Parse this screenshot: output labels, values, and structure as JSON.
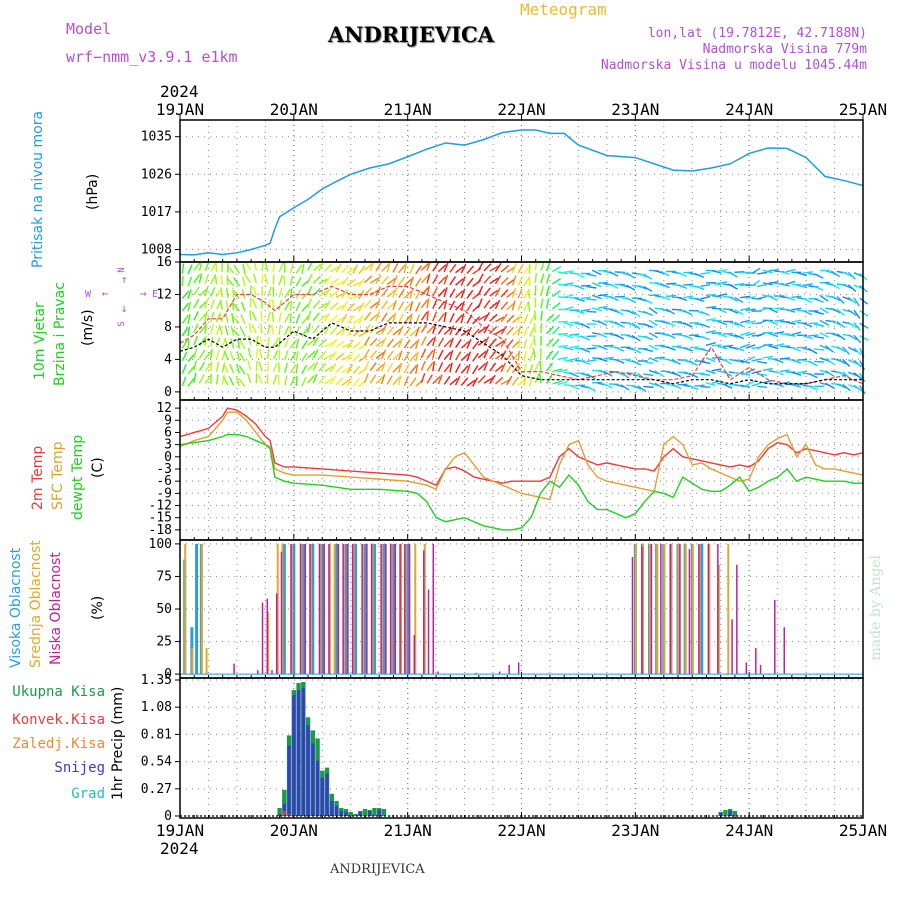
{
  "header": {
    "model_label": "Model",
    "model_name": "wrf−nmm_v3.9.1 e1km",
    "station": "ANDRIJEVICA",
    "meteogram_label": "Meteogram",
    "lonlat": "lon,lat (19.7812E, 42.7188N)",
    "altitude": "Nadmorska Visina 779m",
    "model_altitude": "Nadmorska Visina u modelu 1045.44m"
  },
  "footer": {
    "station": "ANDRIJEVICA",
    "made_by": "made by Angel"
  },
  "colors": {
    "pressure": "#1e9ee0",
    "temp2m": "#f03a3a",
    "sfc": "#e0a030",
    "dewpt": "#20d020",
    "high_cloud": "#2a9ee0",
    "mid_cloud": "#e0a830",
    "low_cloud": "#c0209a",
    "precip_total": "#1a9a4a",
    "conv": "#f03a3a",
    "frozen": "#f08830",
    "snow": "#3a3ad0",
    "hail": "#20c0c0",
    "wind_speed": "#000000",
    "wind_gust": "#f03a3a",
    "wind_legend": "#b34fd6"
  },
  "chart_data": [
    {
      "type": "line",
      "panel": "pressure",
      "ylabel_lines": [
        "Pritisak na nivou mora",
        "(hPa)"
      ],
      "yticks": [
        1008,
        1017,
        1026,
        1035
      ],
      "ylim": [
        1005,
        1039
      ],
      "xlim": [
        0,
        144
      ],
      "x_major_ticks": [
        0,
        24,
        48,
        72,
        96,
        120,
        144
      ],
      "x_tick_labels_top": [
        "19JAN",
        "20JAN",
        "21JAN",
        "22JAN",
        "23JAN",
        "24JAN",
        "25JAN"
      ],
      "year_label": "2024",
      "grid": true,
      "x": [
        0,
        3,
        6,
        9,
        12,
        15,
        18,
        19,
        20,
        21,
        24,
        27,
        30,
        33,
        36,
        40,
        44,
        48,
        52,
        56,
        60,
        64,
        68,
        72,
        75,
        78,
        81,
        84,
        90,
        96,
        100,
        104,
        108,
        112,
        116,
        120,
        124,
        128,
        132,
        136,
        140,
        144
      ],
      "series": [
        {
          "values": [
            1006.8,
            1006.7,
            1007.2,
            1006.8,
            1007.2,
            1008,
            1009,
            1009.5,
            1013,
            1015.8,
            1018,
            1020,
            1022.5,
            1024.3,
            1026,
            1027.5,
            1028.5,
            1030.2,
            1032,
            1033.5,
            1033,
            1034.3,
            1036,
            1036.6,
            1036.6,
            1035.8,
            1035.8,
            1033,
            1030.5,
            1030,
            1028.5,
            1027,
            1026.8,
            1027.5,
            1028.5,
            1031,
            1032.3,
            1032.2,
            1030,
            1025.5,
            1024.5,
            1023.3
          ]
        }
      ]
    },
    {
      "type": "line",
      "panel": "wind",
      "ylabel_lines": [
        "10m Vjetar",
        "Brzina i Pravac",
        "(m/s)"
      ],
      "direction_legend": [
        "N",
        "↑",
        "W",
        "←",
        "→",
        "E",
        "↓",
        "S"
      ],
      "yticks": [
        0,
        4,
        8,
        12,
        16
      ],
      "ylim": [
        -1,
        16
      ],
      "xlim": [
        0,
        144
      ],
      "grid": true,
      "x": [
        0,
        3,
        6,
        9,
        12,
        15,
        18,
        20,
        24,
        28,
        32,
        36,
        40,
        44,
        48,
        52,
        56,
        60,
        64,
        68,
        72,
        76,
        80,
        84,
        88,
        92,
        96,
        100,
        104,
        108,
        112,
        116,
        120,
        124,
        128,
        132,
        136,
        140,
        144
      ],
      "series": [
        {
          "name": "speed",
          "values": [
            5,
            5.5,
            6.5,
            5.5,
            6.5,
            6.5,
            5.5,
            5.5,
            7.5,
            6.5,
            8.5,
            7.5,
            7.5,
            8.5,
            8.5,
            8.5,
            8,
            7.5,
            6,
            4.5,
            2,
            1.5,
            1.5,
            1.5,
            1.5,
            1.5,
            1.5,
            1.5,
            1,
            1.5,
            1.5,
            1,
            1.5,
            1,
            1,
            1,
            1.5,
            1.5,
            1.5
          ]
        },
        {
          "name": "gust",
          "values": [
            6,
            7,
            9,
            9,
            12,
            12,
            11,
            10,
            12,
            12,
            13,
            12,
            12,
            13,
            13,
            12,
            11,
            10,
            8,
            6.5,
            2.5,
            2.5,
            2,
            1.5,
            2,
            2.5,
            2,
            1.5,
            1.5,
            2,
            5.5,
            1.5,
            3,
            1.5,
            1,
            1,
            1.5,
            2,
            1
          ]
        }
      ],
      "barbs": {
        "speed": [
          6,
          7,
          8,
          7,
          8,
          8,
          7,
          7,
          9,
          9,
          10,
          10,
          10,
          11,
          12,
          12,
          12,
          11,
          9,
          7,
          3,
          2,
          2,
          2,
          2,
          2,
          2,
          2,
          2,
          2,
          2,
          2,
          2,
          2,
          2,
          2,
          2,
          2,
          2
        ],
        "direction_deg": [
          200,
          210,
          190,
          150,
          170,
          190,
          200,
          220,
          230,
          225,
          220,
          215,
          210,
          205,
          210,
          215,
          220,
          225,
          200,
          180,
          270,
          280,
          280,
          285,
          290,
          285,
          280,
          280,
          270,
          290,
          250,
          280,
          270,
          280,
          290,
          300,
          320,
          330,
          335
        ]
      }
    },
    {
      "type": "line",
      "panel": "temperature",
      "ylabel_lines": [
        "2m Temp",
        "SFC Temp",
        "dewpt Temp",
        "(C)"
      ],
      "yticks": [
        12,
        9,
        6,
        3,
        0,
        -3,
        -6,
        -9,
        -12,
        -15,
        -18
      ],
      "ylim": [
        -20.5,
        14
      ],
      "xlim": [
        0,
        144
      ],
      "grid": true,
      "x": [
        0,
        3,
        6,
        9,
        10,
        12,
        14,
        16,
        18,
        19,
        20,
        22,
        24,
        30,
        36,
        42,
        48,
        50,
        52,
        54,
        56,
        58,
        60,
        62,
        64,
        66,
        68,
        70,
        72,
        74,
        76,
        78,
        80,
        82,
        84,
        86,
        88,
        90,
        92,
        94,
        96,
        98,
        100,
        102,
        104,
        106,
        108,
        110,
        112,
        114,
        116,
        118,
        120,
        122,
        124,
        126,
        128,
        130,
        132,
        134,
        136,
        138,
        140,
        142,
        144
      ],
      "series": [
        {
          "name": "2m Temp",
          "values": [
            5,
            6,
            7,
            10,
            12,
            11.5,
            10,
            8,
            5,
            4,
            -1.5,
            -2.5,
            -2.5,
            -3,
            -3.5,
            -4,
            -4.5,
            -5,
            -6,
            -7,
            -3,
            -2.5,
            -3.5,
            -5,
            -5.5,
            -6,
            -6.5,
            -6,
            -6,
            -6,
            -6,
            -5,
            0,
            2,
            0,
            -1,
            -2,
            -1.5,
            -2,
            -2.5,
            -3,
            -3,
            -3.5,
            0,
            2,
            0,
            -0.5,
            -1,
            -1.5,
            -2,
            -2.5,
            -2,
            -2.5,
            -1,
            2,
            3.5,
            3,
            1,
            2,
            1.5,
            1,
            0.5,
            1,
            0.5,
            1
          ]
        },
        {
          "name": "SFC Temp",
          "values": [
            2.5,
            4,
            5,
            9,
            11,
            11,
            9,
            6,
            3,
            2.5,
            -3,
            -4,
            -4.5,
            -4.5,
            -5,
            -5.5,
            -6,
            -6.5,
            -7,
            -8,
            -3,
            0,
            1,
            -2,
            -5,
            -6,
            -7,
            -8,
            -9,
            -9.5,
            -10,
            -10.5,
            -2,
            3,
            4,
            -2,
            -5,
            -6,
            -6.5,
            -7,
            -7.5,
            -8,
            -8.5,
            3,
            5,
            3,
            -2,
            -1.5,
            -3,
            -4,
            -5,
            -6,
            -5.5,
            0,
            3,
            4.5,
            5.5,
            0,
            3,
            -2,
            -3,
            -3,
            -3.5,
            -4,
            -4.5
          ]
        },
        {
          "name": "dewpt Temp",
          "values": [
            3,
            3.5,
            4,
            5,
            5.5,
            5.5,
            5,
            4,
            3,
            2,
            -5,
            -6,
            -6.5,
            -7,
            -8,
            -8,
            -8.5,
            -9,
            -11,
            -15,
            -16,
            -15.5,
            -15,
            -16,
            -17,
            -17.5,
            -18,
            -18,
            -17.5,
            -15,
            -9,
            -6,
            -7.5,
            -4.5,
            -7,
            -11,
            -13,
            -13,
            -14,
            -15,
            -14,
            -11,
            -8.5,
            -9,
            -10,
            -5,
            -6.5,
            -8,
            -8.5,
            -8.5,
            -7,
            -5,
            -8.5,
            -7.5,
            -6,
            -5,
            -3,
            -6,
            -5,
            -5.5,
            -6,
            -6,
            -6,
            -6.5,
            -6.5
          ]
        }
      ]
    },
    {
      "type": "bar",
      "panel": "clouds",
      "ylabel_lines": [
        "Visoka Oblacnost",
        "Srednja Oblacnost",
        "Niska Oblacnost",
        "(%)"
      ],
      "yticks": [
        0,
        25,
        50,
        75,
        100
      ],
      "ylim": [
        -3,
        103
      ],
      "xlim": [
        0,
        144
      ],
      "grid": true,
      "series": [
        {
          "name": "Visoka Oblacnost",
          "x": [
            1,
            2.5,
            3.5,
            4.5,
            22,
            24,
            26,
            28,
            30,
            33,
            35,
            37,
            39,
            41,
            43,
            45,
            48,
            96,
            97.5,
            99,
            100.5,
            102,
            103.5,
            105,
            106.5,
            108,
            110
          ],
          "values": [
            88,
            36,
            100,
            100,
            100,
            100,
            100,
            100,
            100,
            100,
            100,
            100,
            100,
            100,
            100,
            100,
            100,
            100,
            100,
            100,
            100,
            100,
            100,
            100,
            100,
            100,
            100
          ]
        },
        {
          "name": "Srednja Oblacnost",
          "x": [
            0.5,
            2,
            4,
            5,
            18,
            20,
            21,
            23,
            25,
            27,
            29,
            31,
            32,
            34,
            36,
            38,
            40,
            42,
            44,
            46,
            47,
            49,
            51,
            95.5,
            97,
            98.5,
            100,
            101.5,
            103,
            104.5,
            106,
            107.5,
            109,
            111,
            113,
            115
          ],
          "values": [
            100,
            20,
            100,
            20,
            48,
            100,
            100,
            100,
            100,
            100,
            100,
            100,
            100,
            100,
            100,
            100,
            100,
            100,
            100,
            100,
            100,
            100,
            100,
            100,
            100,
            100,
            100,
            100,
            100,
            100,
            100,
            100,
            100,
            100,
            84,
            100
          ]
        },
        {
          "name": "Niska Oblacnost",
          "x": [
            12,
            17,
            18,
            19,
            20,
            21,
            22,
            24,
            26,
            27,
            28,
            30,
            31,
            32,
            34,
            35,
            36,
            37,
            39,
            40,
            41,
            43,
            44,
            45,
            46,
            47,
            48,
            49,
            50,
            52,
            53,
            54,
            55,
            63,
            68,
            70,
            72,
            96,
            98,
            100,
            102,
            104,
            106,
            108,
            110,
            112,
            114,
            117,
            118,
            120,
            122,
            123,
            126,
            128
          ],
          "values": [
            8,
            3,
            55,
            58,
            3,
            62,
            94,
            100,
            100,
            100,
            100,
            100,
            100,
            100,
            100,
            100,
            100,
            100,
            100,
            100,
            100,
            100,
            100,
            100,
            100,
            100,
            100,
            100,
            30,
            95,
            65,
            100,
            2,
            1,
            2,
            7,
            9,
            90,
            98,
            100,
            100,
            100,
            100,
            96,
            100,
            100,
            100,
            42,
            84,
            9,
            20,
            7,
            57,
            36
          ]
        }
      ]
    },
    {
      "type": "bar",
      "panel": "precipitation",
      "ylabel_lines": [
        "1hr Precip (mm)"
      ],
      "legend": [
        "Ukupna Kisa",
        "Konvek.Kisa",
        "Zaledj.Kisa",
        "Snijeg",
        "Grad"
      ],
      "yticks": [
        0,
        0.27,
        0.54,
        0.81,
        1.08,
        1.35
      ],
      "ylim": [
        -0.02,
        1.37
      ],
      "xlim": [
        0,
        144
      ],
      "x_major_ticks": [
        0,
        24,
        48,
        72,
        96,
        120,
        144
      ],
      "x_tick_labels_bottom": [
        "19JAN",
        "20JAN",
        "21JAN",
        "22JAN",
        "23JAN",
        "24JAN",
        "25JAN"
      ],
      "year_label": "2024",
      "grid": true,
      "series": [
        {
          "name": "Ukupna Kisa",
          "x": [
            21,
            22,
            23,
            24,
            25,
            26,
            27,
            28,
            29,
            30,
            31,
            32,
            33,
            34,
            35,
            36,
            37,
            38,
            39,
            40,
            41,
            42,
            43,
            114,
            115,
            116,
            117
          ],
          "values": [
            0.08,
            0.26,
            0.8,
            1.25,
            1.32,
            1.33,
            0.98,
            0.85,
            0.77,
            0.45,
            0.48,
            0.22,
            0.15,
            0.08,
            0.07,
            0.04,
            0.02,
            0.05,
            0.07,
            0.06,
            0.08,
            0.08,
            0.07,
            0.04,
            0.06,
            0.07,
            0.05
          ]
        },
        {
          "name": "Snijeg",
          "x": [
            21,
            22,
            23,
            24,
            25,
            26,
            27,
            28,
            29,
            30,
            31,
            32,
            33,
            34,
            35,
            38,
            40,
            42,
            114,
            116
          ],
          "values": [
            0.02,
            0.12,
            0.7,
            1.2,
            1.25,
            1.27,
            0.9,
            0.72,
            0.55,
            0.38,
            0.42,
            0.15,
            0.1,
            0.05,
            0.04,
            0.04,
            0.05,
            0.06,
            0.03,
            0.05
          ]
        },
        {
          "name": "Konvek.Kisa",
          "x": [
            22,
            23
          ],
          "values": [
            0.05,
            0.02
          ]
        },
        {
          "name": "Zaledj.Kisa",
          "x": [],
          "values": []
        },
        {
          "name": "Grad",
          "x": [],
          "values": []
        }
      ]
    }
  ]
}
